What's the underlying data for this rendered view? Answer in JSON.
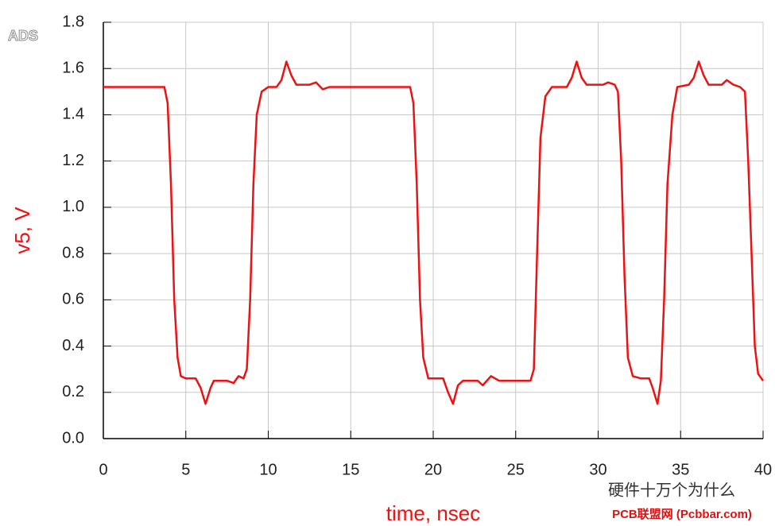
{
  "chart_data": {
    "type": "line",
    "brand": "ADS",
    "ylabel": "v5, V",
    "xlabel": "time, nsec",
    "annotations": [
      "硬件十万个为什么",
      "PCB联盟网 (Pcbbar.com)"
    ],
    "color": "#ee1111",
    "grid": true,
    "xlim": [
      0,
      40
    ],
    "xticks": [
      0,
      5,
      10,
      15,
      20,
      25,
      30,
      35,
      40
    ],
    "ylim": [
      0,
      1.8
    ],
    "yticks": [
      {
        "value": 0,
        "label": "0.0"
      },
      0.2,
      0.4,
      0.6,
      0.8,
      {
        "value": 1,
        "label": "1.0"
      },
      1.2,
      1.4,
      1.6,
      1.8
    ],
    "x": [
      0,
      3.7,
      3.9,
      4.1,
      4.3,
      4.5,
      4.7,
      5,
      5.6,
      5.9,
      6.2,
      6.5,
      6.7,
      7.5,
      7.9,
      8.2,
      8.5,
      8.7,
      8.9,
      9.1,
      9.3,
      9.6,
      10,
      10.5,
      10.8,
      11.1,
      11.4,
      11.7,
      12.5,
      12.9,
      13.3,
      13.7,
      18.6,
      18.8,
      19.0,
      19.2,
      19.4,
      19.7,
      20.6,
      20.9,
      21.2,
      21.5,
      21.8,
      22.7,
      23.0,
      23.5,
      24,
      25.9,
      26.1,
      26.3,
      26.5,
      26.8,
      27.2,
      28.1,
      28.4,
      28.7,
      29.0,
      29.3,
      30.3,
      30.6,
      31.0,
      31.2,
      31.4,
      31.6,
      31.8,
      32.1,
      32.6,
      33.1,
      33.3,
      33.6,
      33.8,
      34.0,
      34.2,
      34.5,
      34.8,
      35.5,
      35.8,
      36.1,
      36.4,
      36.7,
      37.5,
      37.8,
      38.2,
      38.6,
      38.9,
      39.1,
      39.3,
      39.5,
      39.7,
      40
    ],
    "values": [
      1.52,
      1.52,
      1.45,
      1.1,
      0.6,
      0.35,
      0.27,
      0.26,
      0.26,
      0.22,
      0.15,
      0.22,
      0.25,
      0.25,
      0.24,
      0.27,
      0.26,
      0.3,
      0.6,
      1.1,
      1.4,
      1.5,
      1.52,
      1.52,
      1.55,
      1.63,
      1.57,
      1.53,
      1.53,
      1.54,
      1.51,
      1.52,
      1.52,
      1.45,
      1.1,
      0.6,
      0.35,
      0.26,
      0.26,
      0.2,
      0.15,
      0.23,
      0.25,
      0.25,
      0.23,
      0.27,
      0.25,
      0.25,
      0.3,
      0.8,
      1.3,
      1.48,
      1.52,
      1.52,
      1.56,
      1.63,
      1.56,
      1.53,
      1.53,
      1.54,
      1.53,
      1.5,
      1.2,
      0.7,
      0.35,
      0.27,
      0.26,
      0.26,
      0.22,
      0.15,
      0.25,
      0.6,
      1.1,
      1.4,
      1.52,
      1.53,
      1.56,
      1.63,
      1.57,
      1.53,
      1.53,
      1.55,
      1.53,
      1.52,
      1.5,
      1.2,
      0.8,
      0.4,
      0.28,
      0.25
    ]
  }
}
